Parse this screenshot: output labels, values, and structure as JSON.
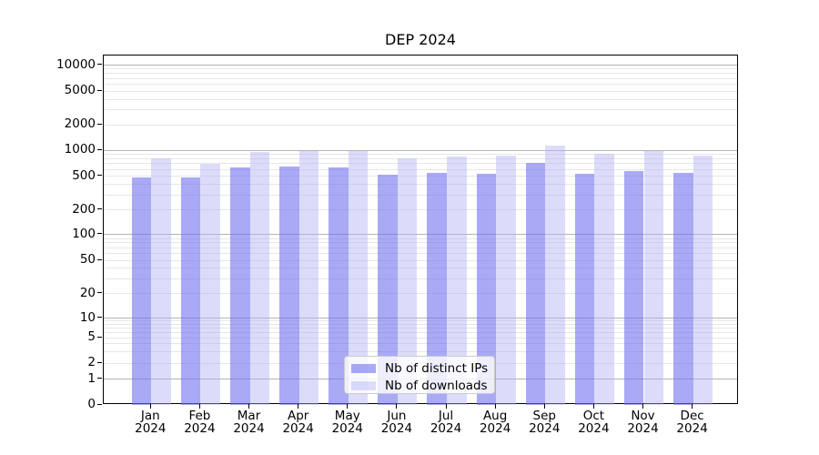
{
  "title": "DEP 2024",
  "chart_data": {
    "type": "bar",
    "categories": [
      "Jan 2024",
      "Feb 2024",
      "Mar 2024",
      "Apr 2024",
      "May 2024",
      "Jun 2024",
      "Jul 2024",
      "Aug 2024",
      "Sep 2024",
      "Oct 2024",
      "Nov 2024",
      "Dec 2024"
    ],
    "series": [
      {
        "name": "Nb of distinct IPs",
        "color": "rgba(112,112,240,0.6)",
        "values": [
          485,
          485,
          630,
          645,
          630,
          520,
          550,
          540,
          710,
          540,
          580,
          550
        ]
      },
      {
        "name": "Nb of downloads",
        "color": "rgba(177,177,245,0.45)",
        "values": [
          810,
          690,
          960,
          970,
          965,
          800,
          845,
          865,
          1120,
          915,
          980,
          860
        ]
      }
    ],
    "yticks": [
      0,
      1,
      2,
      5,
      10,
      20,
      50,
      100,
      200,
      500,
      1000,
      2000,
      5000,
      10000
    ],
    "yscale": "symlog",
    "ylim": [
      0,
      15000
    ],
    "grid": true,
    "legend_position": "lower center",
    "xlabel": "",
    "ylabel": ""
  },
  "colors": {
    "major_grid": "#b4b4b4",
    "minor_grid": "#e7e7e7",
    "spine": "#000000"
  }
}
